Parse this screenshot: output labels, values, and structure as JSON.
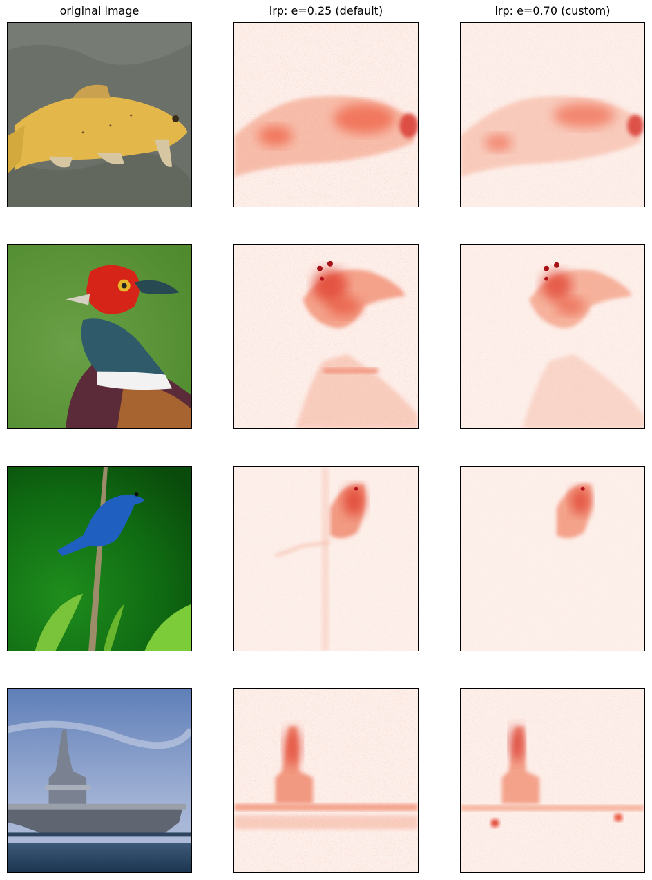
{
  "figure": {
    "column_titles": [
      "original image",
      "lrp: e=0.25 (default)",
      "lrp: e=0.70 (custom)"
    ],
    "rows": [
      {
        "subject": "fish",
        "original": "tench fish on grey-green cloth",
        "heatmap_default": "red relevance over fish body",
        "heatmap_custom": "red relevance over fish body, sparser"
      },
      {
        "subject": "pheasant",
        "original": "pheasant head and neck on green background",
        "heatmap_default": "red relevance over head and neck",
        "heatmap_custom": "red relevance over head and neck, sparser"
      },
      {
        "subject": "bunting",
        "original": "blue bird on a twig with green leaves",
        "heatmap_default": "red relevance over bird",
        "heatmap_custom": "red relevance over bird, sparser"
      },
      {
        "subject": "carrier",
        "original": "aircraft carrier on sea under blue sky",
        "heatmap_default": "red relevance over ship tower and deck line",
        "heatmap_custom": "red relevance over ship tower and deck line, sparser"
      }
    ],
    "colors": {
      "heatmap_base": "#fdf0eb",
      "heatmap_low": "#f9c0aa",
      "heatmap_mid": "#ef5a3c",
      "heatmap_high": "#b3121b"
    }
  }
}
